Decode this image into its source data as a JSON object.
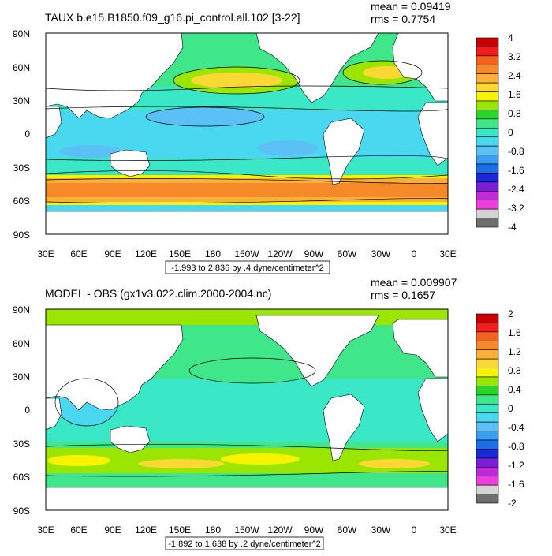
{
  "map_panels": [
    {
      "title": "TAUX b.e15.B1850.f09_g16.pi_control.all.102 [3-22]",
      "mean_text": "mean = 0.09419",
      "rms_text": "rms = 0.7754",
      "range_text": "-1.993 to 2.836 by .4 dyne/centimeter^2",
      "colorbar": {
        "labels": [
          "4",
          "3.2",
          "2.4",
          "1.6",
          "0.8",
          "0",
          "-0.8",
          "-1.6",
          "-2.4",
          "-3.2",
          "-4"
        ],
        "colors": [
          "#c80000",
          "#f01d1d",
          "#f5621e",
          "#f78a28",
          "#fbb03a",
          "#fbd834",
          "#f8f400",
          "#9ae600",
          "#2ad52a",
          "#40e68a",
          "#3ae8c8",
          "#49d8f0",
          "#5ac0f5",
          "#3a9ef0",
          "#1c6ee8",
          "#1a2ad8",
          "#7a1ed8",
          "#c02ad8",
          "#ee3ee0",
          "#d4d4d4",
          "#6e6e6e"
        ]
      }
    },
    {
      "title": "MODEL - OBS (gx1v3.022.clim.2000-2004.nc)",
      "mean_text": "mean = 0.009907",
      "rms_text": "rms = 0.1657",
      "range_text": "-1.892 to 1.638 by .2 dyne/centimeter^2",
      "colorbar": {
        "labels": [
          "2",
          "1.6",
          "1.2",
          "0.8",
          "0.4",
          "0",
          "-0.4",
          "-0.8",
          "-1.2",
          "-1.6",
          "-2"
        ],
        "colors": [
          "#c80000",
          "#f01d1d",
          "#f5621e",
          "#f78a28",
          "#fbb03a",
          "#fbd834",
          "#f8f400",
          "#9ae600",
          "#2ad52a",
          "#40e68a",
          "#3ae8c8",
          "#49d8f0",
          "#5ac0f5",
          "#3a9ef0",
          "#1c6ee8",
          "#1a2ad8",
          "#7a1ed8",
          "#c02ad8",
          "#ee3ee0",
          "#d4d4d4",
          "#6e6e6e"
        ]
      }
    }
  ],
  "axes": {
    "lat_labels": [
      "90N",
      "60N",
      "30N",
      "0",
      "30S",
      "60S",
      "90S"
    ],
    "lon_labels": [
      "30E",
      "60E",
      "90E",
      "120E",
      "150E",
      "180",
      "150W",
      "120W",
      "90W",
      "60W",
      "30W",
      "0",
      "30E"
    ]
  }
}
